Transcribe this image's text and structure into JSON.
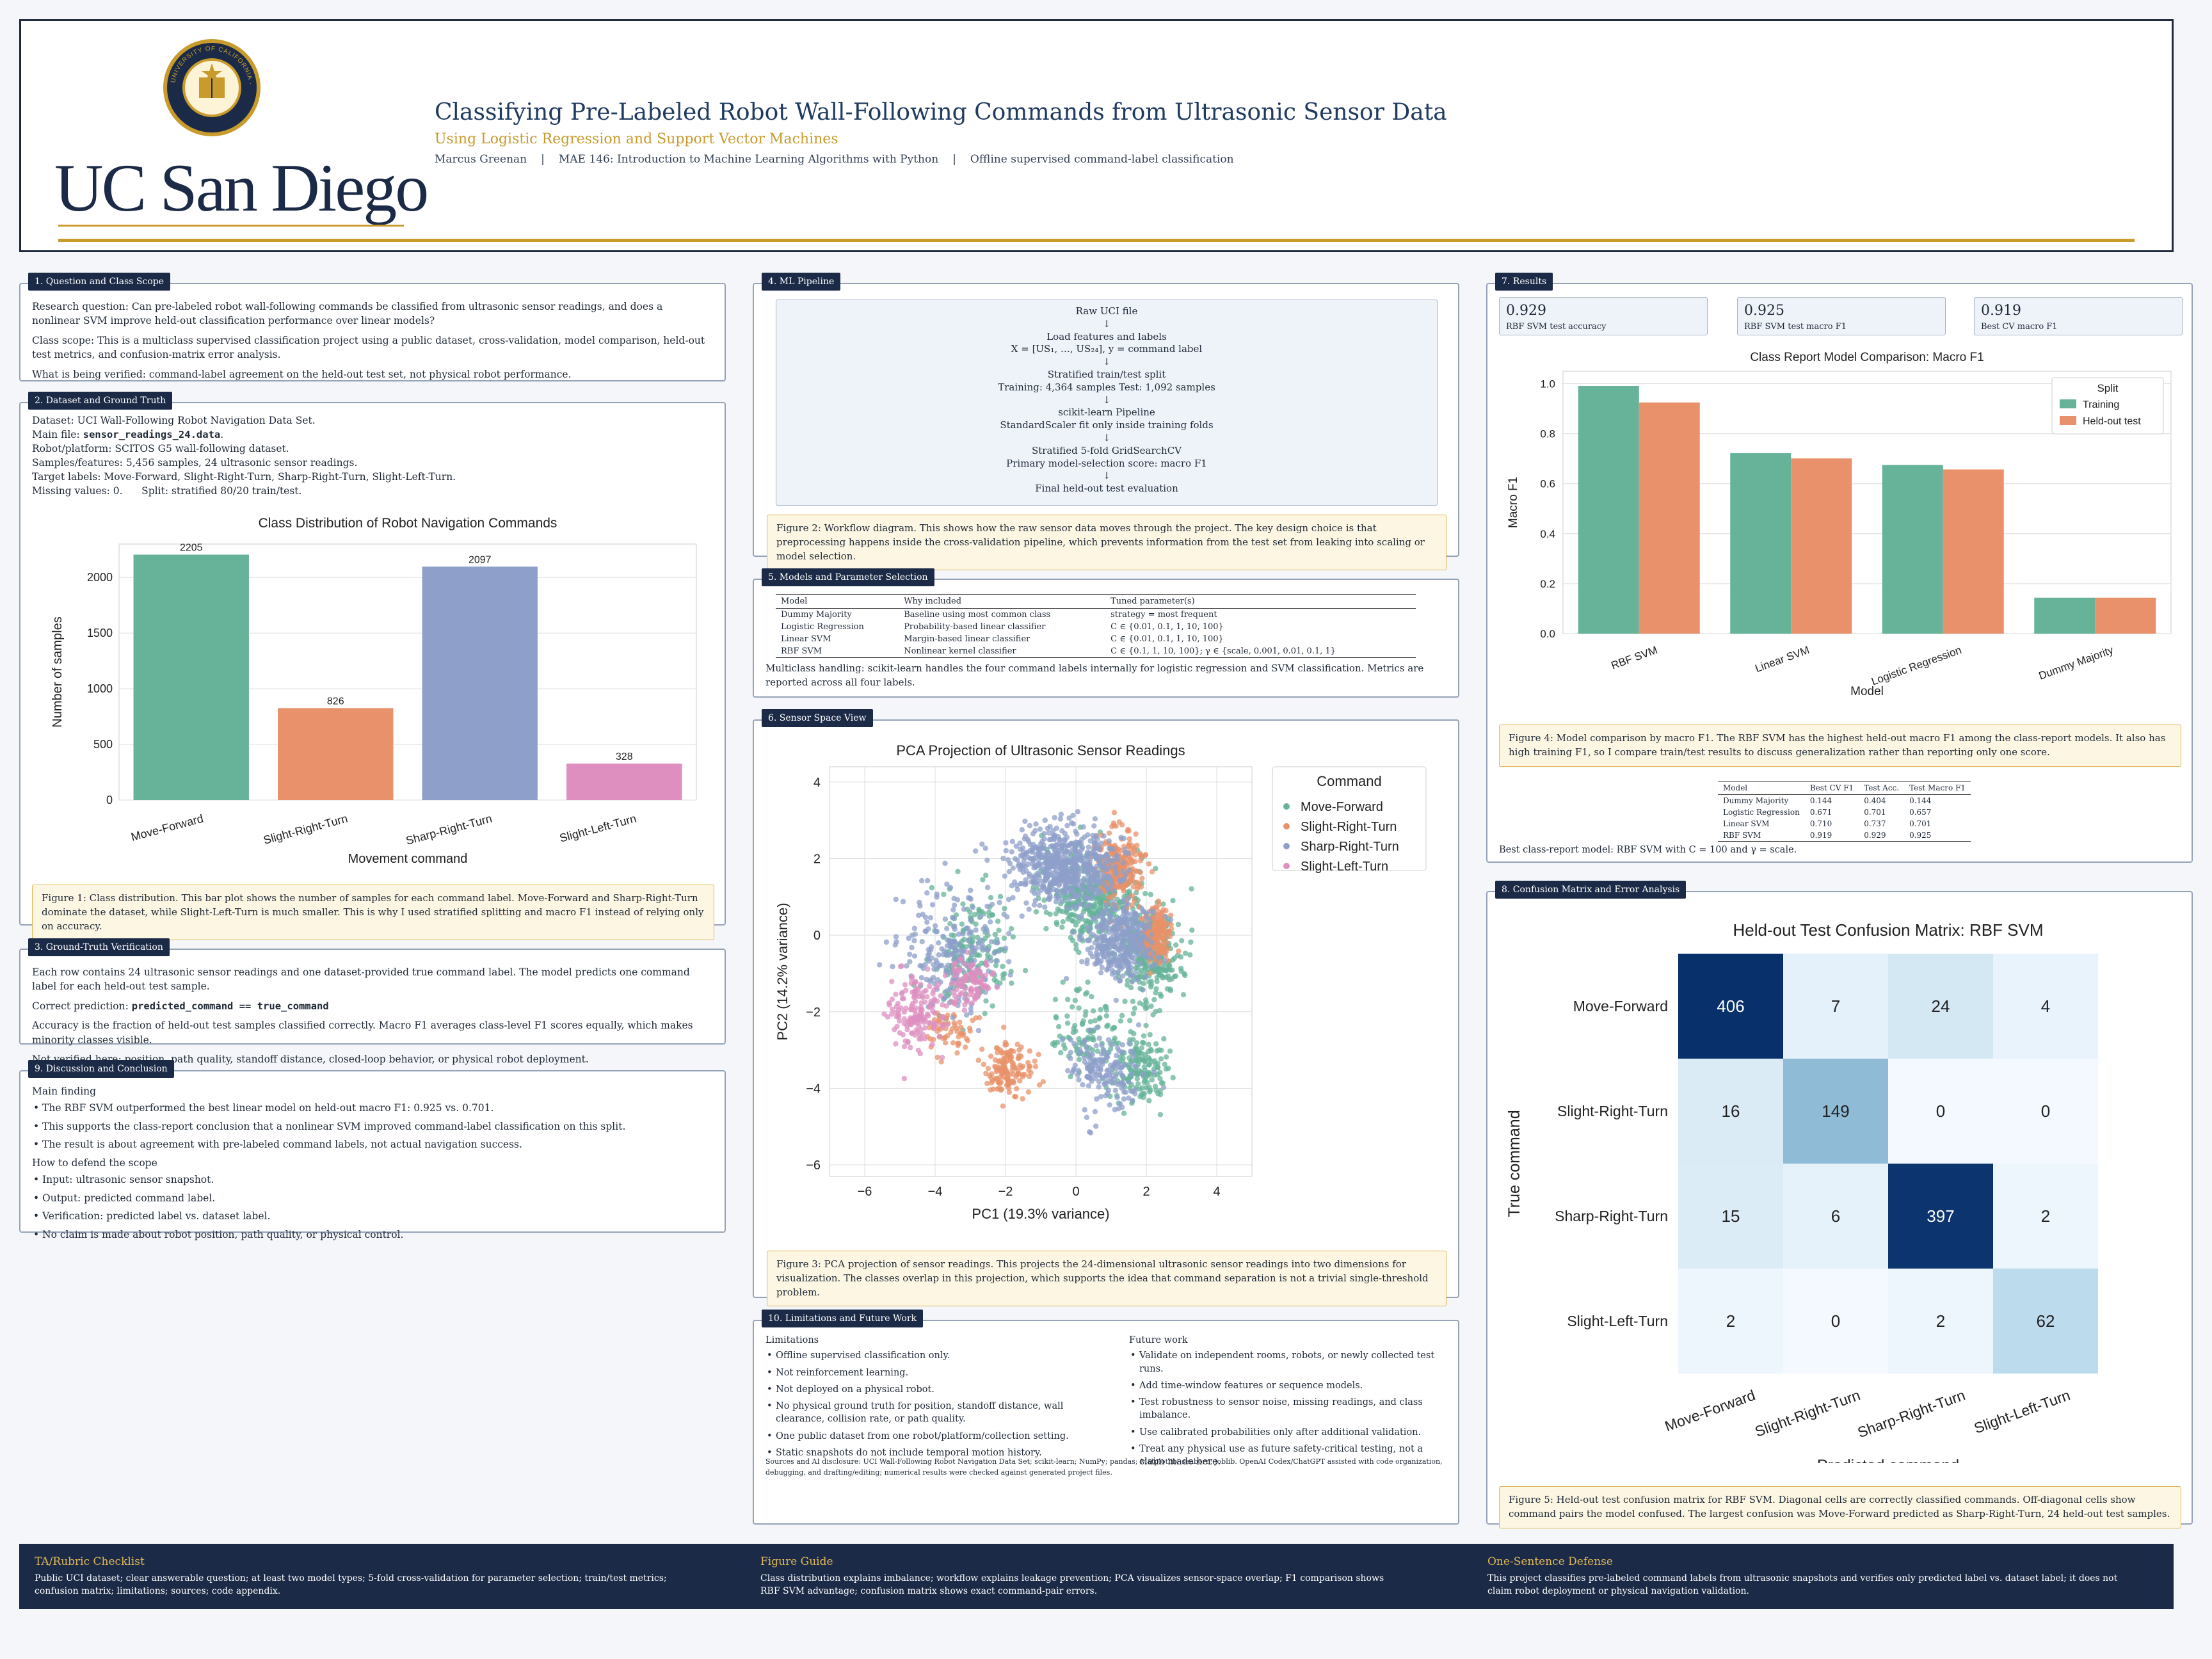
{
  "header": {
    "title": "Classifying Pre-Labeled Robot Wall-Following Commands from Ultrasonic Sensor Data",
    "subtitle": "Using Logistic Regression and Support Vector Machines",
    "author": "Marcus Greenan",
    "course": "MAE 146: Introduction to Machine Learning Algorithms with Python",
    "scope": "Offline supervised command-label classification",
    "wordmark": "UC San Diego",
    "seal_text": "UNIVERSITY OF CALIFORNIA · SAN DIEGO"
  },
  "s1": {
    "tag": "1. Question and Class Scope",
    "p1": "Research question: Can pre-labeled robot wall-following commands be classified from ultrasonic sensor readings, and does a nonlinear SVM improve held-out classification performance over linear models?",
    "p2": "Class scope: This is a multiclass supervised classification project using a public dataset, cross-validation, model comparison, held-out test metrics, and confusion-matrix error analysis.",
    "p3": "What is being verified: command-label agreement on the held-out test set, not physical robot performance."
  },
  "s2": {
    "tag": "2. Dataset and Ground Truth",
    "l1": "Dataset: UCI Wall-Following Robot Navigation Data Set.",
    "l2a": "Main file: ",
    "l2b": "sensor_readings_24.data",
    "l2c": ".",
    "l3": "Robot/platform: SCITOS G5 wall-following dataset.",
    "l4": "Samples/features: 5,456 samples, 24 ultrasonic sensor readings.",
    "l5": "Target labels: Move-Forward, Slight-Right-Turn, Sharp-Right-Turn, Slight-Left-Turn.",
    "l6": "Missing values: 0.      Split: stratified 80/20 train/test.",
    "caption": "Figure 1: Class distribution. This bar plot shows the number of samples for each command label. Move-Forward and Sharp-Right-Turn dominate the dataset, while Slight-Left-Turn is much smaller. This is why I used stratified splitting and macro F1 instead of relying only on accuracy."
  },
  "s3": {
    "tag": "3. Ground-Truth Verification",
    "p1": "Each row contains 24 ultrasonic sensor readings and one dataset-provided true command label. The model predicts one command label for each held-out test sample.",
    "p2a": "Correct prediction: ",
    "p2b": "predicted_command == true_command",
    "p3": "Accuracy is the fraction of held-out test samples classified correctly. Macro F1 averages class-level F1 scores equally, which makes minority classes visible.",
    "p4": "Not verified here: position, path quality, standoff distance, closed-loop behavior, or physical robot deployment."
  },
  "s9": {
    "tag": "9. Discussion and Conclusion",
    "h1": "Main finding",
    "b1": [
      "The RBF SVM outperformed the best linear model on held-out macro F1: 0.925 vs. 0.701.",
      "This supports the class-report conclusion that a nonlinear SVM improved command-label classification on this split.",
      "The result is about agreement with pre-labeled command labels, not actual navigation success."
    ],
    "h2": "How to defend the scope",
    "b2": [
      "Input: ultrasonic sensor snapshot.",
      "Output: predicted command label.",
      "Verification: predicted label vs. dataset label.",
      "No claim is made about robot position, path quality, or physical control."
    ]
  },
  "s4": {
    "tag": "4. ML Pipeline",
    "arrow": "↓",
    "steps": [
      [
        "Raw UCI file"
      ],
      [
        "Load features and labels",
        "X = [US₁, …, US₂₄],    y = command label"
      ],
      [
        "Stratified train/test split",
        "Training: 4,364 samples    Test: 1,092 samples"
      ],
      [
        "scikit-learn Pipeline",
        "StandardScaler fit only inside training folds"
      ],
      [
        "Stratified 5-fold GridSearchCV",
        "Primary model-selection score: macro F1"
      ],
      [
        "Final held-out test evaluation"
      ]
    ],
    "caption": "Figure 2: Workflow diagram. This shows how the raw sensor data moves through the project. The key design choice is that preprocessing happens inside the cross-validation pipeline, which prevents information from the test set from leaking into scaling or model selection."
  },
  "s5": {
    "tag": "5. Models and Parameter Selection",
    "headers": [
      "Model",
      "Why included",
      "Tuned parameter(s)"
    ],
    "rows": [
      [
        "Dummy Majority",
        "Baseline using most common class",
        "strategy = most frequent"
      ],
      [
        "Logistic Regression",
        "Probability-based linear classifier",
        "C ∈ {0.01, 0.1, 1, 10, 100}"
      ],
      [
        "Linear SVM",
        "Margin-based linear classifier",
        "C ∈ {0.01, 0.1, 1, 10, 100}"
      ],
      [
        "RBF SVM",
        "Nonlinear kernel classifier",
        "C ∈ {0.1, 1, 10, 100}; γ ∈ {scale, 0.001, 0.01, 0.1, 1}"
      ]
    ],
    "note": "Multiclass handling: scikit-learn handles the four command labels internally for logistic regression and SVM classification. Metrics are reported across all four labels."
  },
  "s6": {
    "tag": "6. Sensor Space View",
    "caption": "Figure 3: PCA projection of sensor readings. This projects the 24-dimensional ultrasonic sensor readings into two dimensions for visualization. The classes overlap in this projection, which supports the idea that command separation is not a trivial single-threshold problem."
  },
  "s10": {
    "tag": "10. Limitations and Future Work",
    "h1": "Limitations",
    "b1": [
      "Offline supervised classification only.",
      "Not reinforcement learning.",
      "Not deployed on a physical robot.",
      "No physical ground truth for position, standoff distance, wall clearance, collision rate, or path quality.",
      "One public dataset from one robot/platform/collection setting.",
      "Static snapshots do not include temporal motion history."
    ],
    "h2": "Future work",
    "b2": [
      "Validate on independent rooms, robots, or newly collected test runs.",
      "Add time-window features or sequence models.",
      "Test robustness to sensor noise, missing readings, and class imbalance.",
      "Use calibrated probabilities only after additional validation.",
      "Treat any physical use as future safety-critical testing, not a claim made here."
    ],
    "sources": "Sources and AI disclosure: UCI Wall-Following Robot Navigation Data Set; scikit-learn; NumPy; pandas; Matplotlib; seaborn; joblib. OpenAI Codex/ChatGPT assisted with code organization, debugging, and drafting/editing; numerical results were checked against generated project files."
  },
  "s7": {
    "tag": "7. Results",
    "kpis": [
      {
        "value": "0.929",
        "label": "RBF SVM test accuracy"
      },
      {
        "value": "0.925",
        "label": "RBF SVM test macro F1"
      },
      {
        "value": "0.919",
        "label": "Best CV macro F1"
      }
    ],
    "caption": "Figure 4: Model comparison by macro F1. The RBF SVM has the highest held-out macro F1 among the class-report models. It also has high training F1, so I compare train/test results to discuss generalization rather than reporting only one score.",
    "table_headers": [
      "Model",
      "Best CV F1",
      "Test Acc.",
      "Test Macro F1"
    ],
    "table_rows": [
      [
        "Dummy Majority",
        "0.144",
        "0.404",
        "0.144"
      ],
      [
        "Logistic Regression",
        "0.671",
        "0.701",
        "0.657"
      ],
      [
        "Linear SVM",
        "0.710",
        "0.737",
        "0.701"
      ],
      [
        "RBF SVM",
        "0.919",
        "0.929",
        "0.925"
      ]
    ],
    "best": "Best class-report model: RBF SVM with C = 100 and γ = scale."
  },
  "s8": {
    "tag": "8. Confusion Matrix and Error Analysis",
    "caption": "Figure 5: Held-out test confusion matrix for RBF SVM. Diagonal cells are correctly classified commands. Off-diagonal cells show command pairs the model confused. The largest confusion was Move-Forward predicted as Sharp-Right-Turn, 24 held-out test samples."
  },
  "footer": {
    "c1h": "TA/Rubric Checklist",
    "c1b": "Public UCI dataset; clear answerable question; at least two model types; 5-fold cross-validation for parameter selection; train/test metrics; confusion matrix; limitations; sources; code appendix.",
    "c2h": "Figure Guide",
    "c2b": "Class distribution explains imbalance; workflow explains leakage prevention; PCA visualizes sensor-space overlap; F1 comparison shows RBF SVM advantage; confusion matrix shows exact command-pair errors.",
    "c3h": "One-Sentence Defense",
    "c3b": "This project classifies pre-labeled command labels from ultrasonic snapshots and verifies only predicted label vs. dataset label; it does not claim robot deployment or physical navigation validation."
  },
  "colors": {
    "navy": "#1b2b47",
    "gold": "#c89b2c",
    "move": "#66b39a",
    "slight_right": "#e8916a",
    "sharp_right": "#8e9fc9",
    "slight_left": "#de8fc0"
  },
  "chart_data": [
    {
      "type": "bar",
      "title": "Class Distribution of Robot Navigation Commands",
      "xlabel": "Movement command",
      "ylabel": "Number of samples",
      "categories": [
        "Move-Forward",
        "Slight-Right-Turn",
        "Sharp-Right-Turn",
        "Slight-Left-Turn"
      ],
      "values": [
        2205,
        826,
        2097,
        328
      ],
      "ylim": [
        0,
        2300
      ],
      "yticks": [
        0,
        500,
        1000,
        1500,
        2000
      ],
      "colors": [
        "#66b39a",
        "#e8916a",
        "#8e9fc9",
        "#de8fc0"
      ],
      "grid": true
    },
    {
      "type": "scatter",
      "title": "PCA Projection of Ultrasonic Sensor Readings",
      "xlabel": "PC1 (19.3% variance)",
      "ylabel": "PC2 (14.2% variance)",
      "xlim": [
        -7,
        5
      ],
      "ylim": [
        -6.3,
        4.4
      ],
      "xticks": [
        -6,
        -4,
        -2,
        0,
        2,
        4
      ],
      "yticks": [
        -6,
        -4,
        -2,
        0,
        2,
        4
      ],
      "legend_title": "Command",
      "legend_position": "top-right",
      "grid": true,
      "series": [
        {
          "name": "Move-Forward",
          "color": "#66b39a",
          "clusters": [
            [
              0.5,
              1.0,
              1.3,
              1.0,
              400
            ],
            [
              2.1,
              -0.5,
              0.8,
              1.2,
              300
            ],
            [
              1.8,
              -3.5,
              0.7,
              0.8,
              160
            ],
            [
              -3.0,
              -0.5,
              1.0,
              1.3,
              180
            ],
            [
              0.3,
              -2.5,
              0.9,
              1.0,
              100
            ]
          ]
        },
        {
          "name": "Slight-Right-Turn",
          "color": "#e8916a",
          "clusters": [
            [
              1.2,
              1.8,
              0.6,
              0.9,
              250
            ],
            [
              2.3,
              0.0,
              0.4,
              0.6,
              200
            ],
            [
              -1.9,
              -3.5,
              0.6,
              0.6,
              140
            ],
            [
              -3.5,
              -2.5,
              0.6,
              0.6,
              60
            ]
          ]
        },
        {
          "name": "Sharp-Right-Turn",
          "color": "#8e9fc9",
          "clusters": [
            [
              -0.4,
              1.8,
              1.4,
              0.9,
              600
            ],
            [
              1.2,
              -0.2,
              0.9,
              0.9,
              350
            ],
            [
              -3.5,
              -0.4,
              1.2,
              1.4,
              220
            ],
            [
              0.8,
              -3.5,
              0.9,
              0.9,
              160
            ]
          ]
        },
        {
          "name": "Slight-Left-Turn",
          "color": "#de8fc0",
          "clusters": [
            [
              -4.5,
              -2.0,
              0.8,
              0.9,
              160
            ],
            [
              -3.0,
              -1.2,
              0.6,
              0.6,
              100
            ]
          ]
        }
      ]
    },
    {
      "type": "bar",
      "title": "Class Report Model Comparison: Macro F1",
      "xlabel": "Model",
      "ylabel": "Macro F1",
      "categories": [
        "RBF SVM",
        "Linear SVM",
        "Logistic Regression",
        "Dummy Majority"
      ],
      "series": [
        {
          "name": "Training",
          "color": "#66b39a",
          "values": [
            0.991,
            0.722,
            0.675,
            0.144
          ]
        },
        {
          "name": "Held-out test",
          "color": "#e8916a",
          "values": [
            0.925,
            0.701,
            0.657,
            0.144
          ]
        }
      ],
      "legend_title": "Split",
      "legend_position": "top-right",
      "ylim": [
        0,
        1.05
      ],
      "yticks": [
        0.0,
        0.2,
        0.4,
        0.6,
        0.8,
        1.0
      ],
      "grid": true
    },
    {
      "type": "heatmap",
      "title": "Held-out Test Confusion Matrix: RBF SVM",
      "xlabel": "Predicted command",
      "ylabel": "True command",
      "labels": [
        "Move-Forward",
        "Slight-Right-Turn",
        "Sharp-Right-Turn",
        "Slight-Left-Turn"
      ],
      "matrix": [
        [
          406,
          7,
          24,
          4
        ],
        [
          16,
          149,
          0,
          0
        ],
        [
          15,
          6,
          397,
          2
        ],
        [
          2,
          0,
          2,
          62
        ]
      ]
    }
  ]
}
